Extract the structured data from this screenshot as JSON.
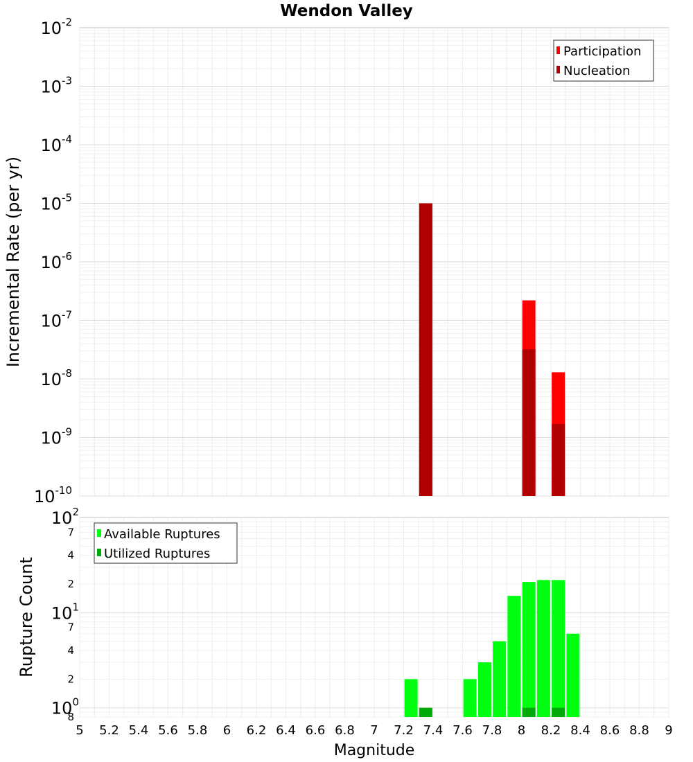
{
  "chart_data": [
    {
      "type": "bar",
      "title": "Wendon Valley",
      "ylabel": "Incremental Rate (per yr)",
      "xlim": [
        5,
        9
      ],
      "ylim": [
        1e-10,
        0.01
      ],
      "yscale": "log",
      "grid": true,
      "legend_position": "top-right",
      "series": [
        {
          "name": "Participation",
          "color": "#ff0000",
          "x": [
            7.35,
            8.05,
            8.25
          ],
          "values": [
            1e-05,
            2.2e-07,
            1.3e-08
          ]
        },
        {
          "name": "Nucleation",
          "color": "#b00000",
          "x": [
            7.35,
            8.05,
            8.25
          ],
          "values": [
            1e-05,
            3.2e-08,
            1.7e-09
          ]
        }
      ]
    },
    {
      "type": "bar",
      "xlabel": "Magnitude",
      "ylabel": "Rupture Count",
      "xlim": [
        5,
        9
      ],
      "ylim": [
        0.8,
        100
      ],
      "yscale": "log",
      "grid": true,
      "legend_position": "top-left",
      "series": [
        {
          "name": "Available Ruptures",
          "color": "#00ff11",
          "x": [
            7.25,
            7.65,
            7.75,
            7.85,
            7.95,
            8.05,
            8.15,
            8.25,
            8.35
          ],
          "values": [
            2,
            2,
            3,
            5,
            15,
            21,
            22,
            22,
            6
          ]
        },
        {
          "name": "Utilized Ruptures",
          "color": "#00aa0b",
          "x": [
            7.35,
            8.05,
            8.25
          ],
          "values": [
            1,
            1,
            1
          ]
        }
      ],
      "x_ticks": [
        "5",
        "5.2",
        "5.4",
        "5.6",
        "5.8",
        "6",
        "6.2",
        "6.4",
        "6.6",
        "6.8",
        "7",
        "7.2",
        "7.4",
        "7.6",
        "7.8",
        "8",
        "8.2",
        "8.4",
        "8.6",
        "8.8",
        "9"
      ],
      "top_y_ticks": [
        "-2",
        "-3",
        "-4",
        "-5",
        "-6",
        "-7",
        "-8",
        "-9",
        "-10"
      ],
      "bottom_y_ticks": {
        "decades": [
          "2",
          "1",
          "0"
        ],
        "minor": [
          {
            "value": 70,
            "label": "7"
          },
          {
            "value": 40,
            "label": "4"
          },
          {
            "value": 20,
            "label": "2"
          },
          {
            "value": 7,
            "label": "7"
          },
          {
            "value": 4,
            "label": "4"
          },
          {
            "value": 2,
            "label": "2"
          },
          {
            "value": 0.8,
            "label": "8"
          }
        ]
      },
      "decade_base": "10"
    }
  ]
}
